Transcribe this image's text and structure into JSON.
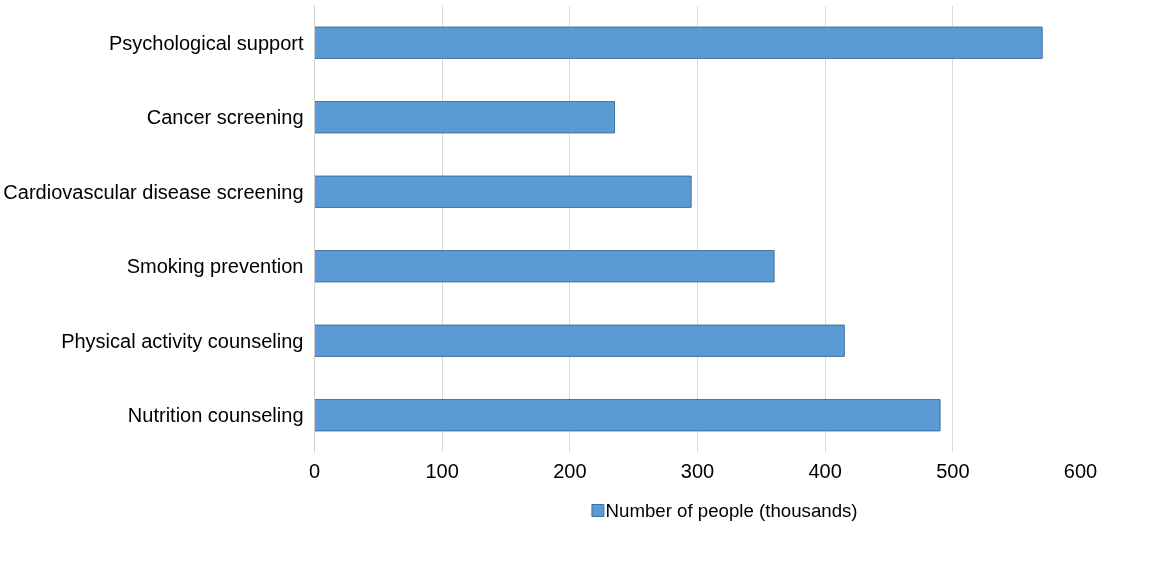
{
  "chart_data": {
    "type": "bar",
    "orientation": "horizontal",
    "categories": [
      "Psychological support",
      "Cancer screening",
      "Cardiovascular disease screening",
      "Smoking prevention",
      "Physical activity counseling",
      "Nutrition counseling"
    ],
    "series": [
      {
        "name": "Number of people (thousands)",
        "color": "#5b9bd5",
        "values": [
          570,
          235,
          295,
          360,
          415,
          490
        ]
      }
    ],
    "xlim": [
      0,
      600
    ],
    "xticks": [
      0,
      100,
      200,
      300,
      400,
      500,
      600
    ],
    "grid": "x",
    "legend": "bottom"
  }
}
